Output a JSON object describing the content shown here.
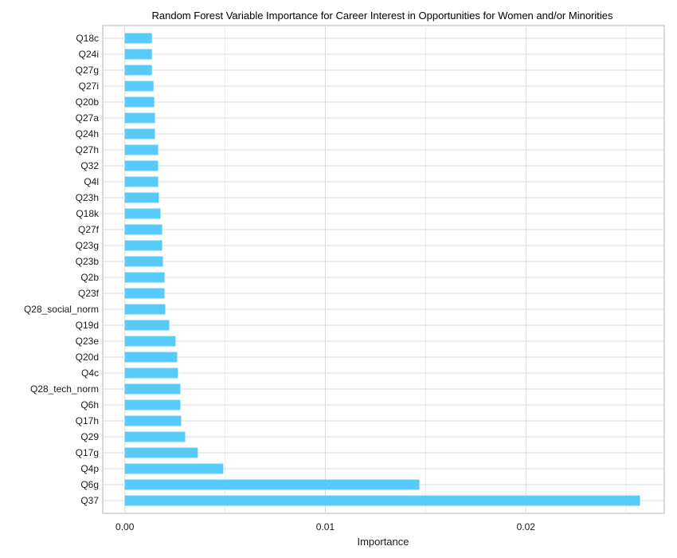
{
  "chart_data": {
    "type": "bar",
    "orientation": "horizontal",
    "title": "Random Forest Variable Importance for Career Interest in Opportunities for Women and/or Minorities",
    "xlabel": "Importance",
    "ylabel": "",
    "xlim": [
      -0.0011,
      0.0269
    ],
    "x_ticks": [
      0.0,
      0.01,
      0.02
    ],
    "x_tick_labels": [
      "0.00",
      "0.01",
      "0.02"
    ],
    "grid": true,
    "bar_color": "#56CBF9",
    "categories": [
      "Q18c",
      "Q24i",
      "Q27g",
      "Q27i",
      "Q20b",
      "Q27a",
      "Q24h",
      "Q27h",
      "Q32",
      "Q4l",
      "Q23h",
      "Q18k",
      "Q27f",
      "Q23g",
      "Q23b",
      "Q2b",
      "Q23f",
      "Q28_social_norm",
      "Q19d",
      "Q23e",
      "Q20d",
      "Q4c",
      "Q28_tech_norm",
      "Q6h",
      "Q17h",
      "Q29",
      "Q17g",
      "Q4p",
      "Q6g",
      "Q37"
    ],
    "values": [
      0.00135,
      0.00135,
      0.00135,
      0.00143,
      0.00147,
      0.0015,
      0.0015,
      0.00166,
      0.00166,
      0.00166,
      0.0017,
      0.00178,
      0.00186,
      0.00186,
      0.0019,
      0.00198,
      0.00198,
      0.00202,
      0.00222,
      0.00253,
      0.00261,
      0.00265,
      0.00277,
      0.00277,
      0.00281,
      0.00301,
      0.00364,
      0.00491,
      0.01469,
      0.02569
    ]
  }
}
